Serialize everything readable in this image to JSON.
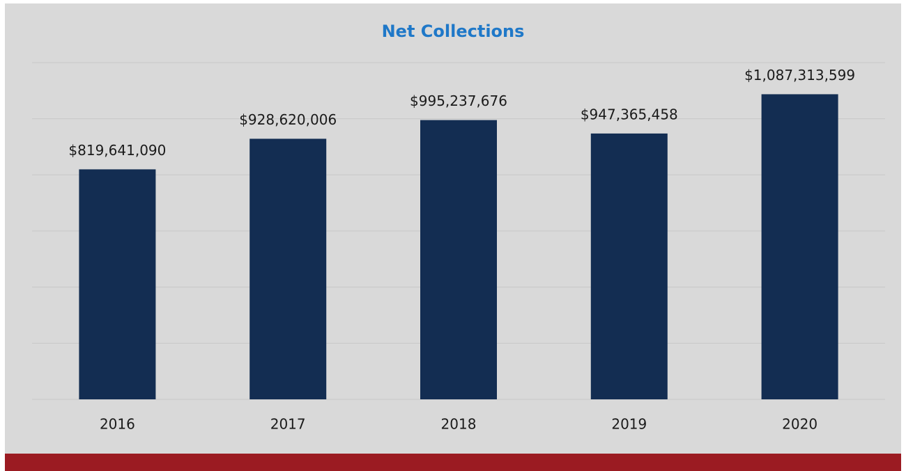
{
  "chart_data": {
    "type": "bar",
    "title": "Net Collections",
    "categories": [
      "2016",
      "2017",
      "2018",
      "2019",
      "2020"
    ],
    "values": [
      819641090,
      928620006,
      995237676,
      947365458,
      1087313599
    ],
    "value_labels": [
      "$819,641,090",
      "$928,620,006",
      "$995,237,676",
      "$947,365,458",
      "$1,087,313,599"
    ],
    "color": "#132d52",
    "ylim": [
      0,
      1200000000
    ],
    "yticks": [
      0,
      200000000,
      400000000,
      600000000,
      800000000,
      1000000000,
      1200000000
    ],
    "grid": true
  }
}
